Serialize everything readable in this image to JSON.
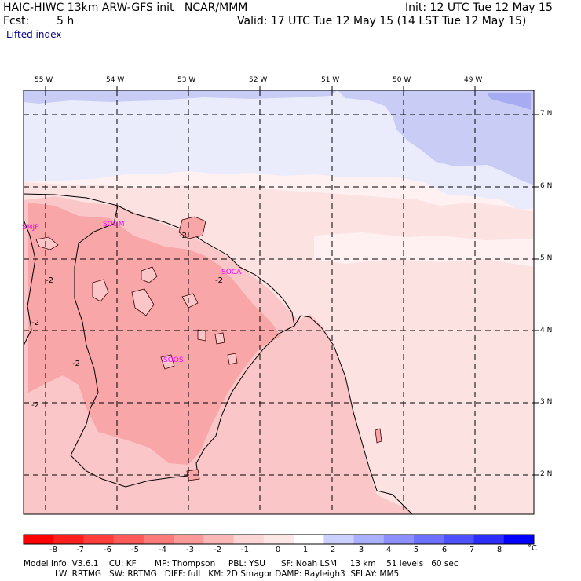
{
  "header": {
    "title": "HAIC-HIWC 13km ARW-GFS init   NCAR/MMM",
    "init": "Init: 12 UTC Tue 12 May 15",
    "fcst_label": "Fcst:",
    "fcst_value": "5 h",
    "valid": "Valid: 17 UTC Tue 12 May 15 (14 LST Tue 12 May 15)",
    "field": "Lifted index"
  },
  "map": {
    "lon_labels": [
      "55 W",
      "54 W",
      "53 W",
      "52 W",
      "51 W",
      "50 W",
      "49 W"
    ],
    "lat_labels": [
      "7 N",
      "6 N",
      "5 N",
      "4 N",
      "3 N",
      "2 N"
    ],
    "stations": [
      "SMJP",
      "SOGM",
      "SOCA",
      "SOOS"
    ],
    "contour_labels": [
      "-2",
      "-2",
      "-2",
      "-2",
      "-2",
      "-2"
    ],
    "colors": {
      "li_minus3": "#f9a6a9",
      "li_minus2": "#fbc6c7",
      "li_minus1": "#fde2e2",
      "li_zero": "#fff1f1",
      "li_plus1": "#ebecfb",
      "li_plus2": "#c9cdf6",
      "li_plus3": "#a7acf2"
    }
  },
  "colorbar": {
    "ticks": [
      "-8",
      "-7",
      "-6",
      "-5",
      "-4",
      "-3",
      "-2",
      "-1",
      "0",
      "1",
      "2",
      "3",
      "4",
      "5",
      "6",
      "7",
      "8"
    ],
    "unit": "°C",
    "colors": [
      "#ff0000",
      "#ff1f1f",
      "#ff3d3d",
      "#ff5a5a",
      "#fd7a7a",
      "#fb9999",
      "#fbb8b8",
      "#fcd6d6",
      "#fde6e6",
      "#ffffff",
      "#ccd0ff",
      "#aaaffe",
      "#8c8ffd",
      "#6d70fc",
      "#4d50fb",
      "#2c2dfa",
      "#0000ff"
    ]
  },
  "footer": {
    "line1": "Model Info: V3.6.1    CU: KF       MP: Thompson     PBL: YSU      SF: Noah LSM     13 km    51 levels   60 sec",
    "line2": "            LW: RRTMG   SW: RRTMG   DIFF: full   KM: 2D Smagor DAMP: Rayleigh3  SFLAY: MM5"
  }
}
